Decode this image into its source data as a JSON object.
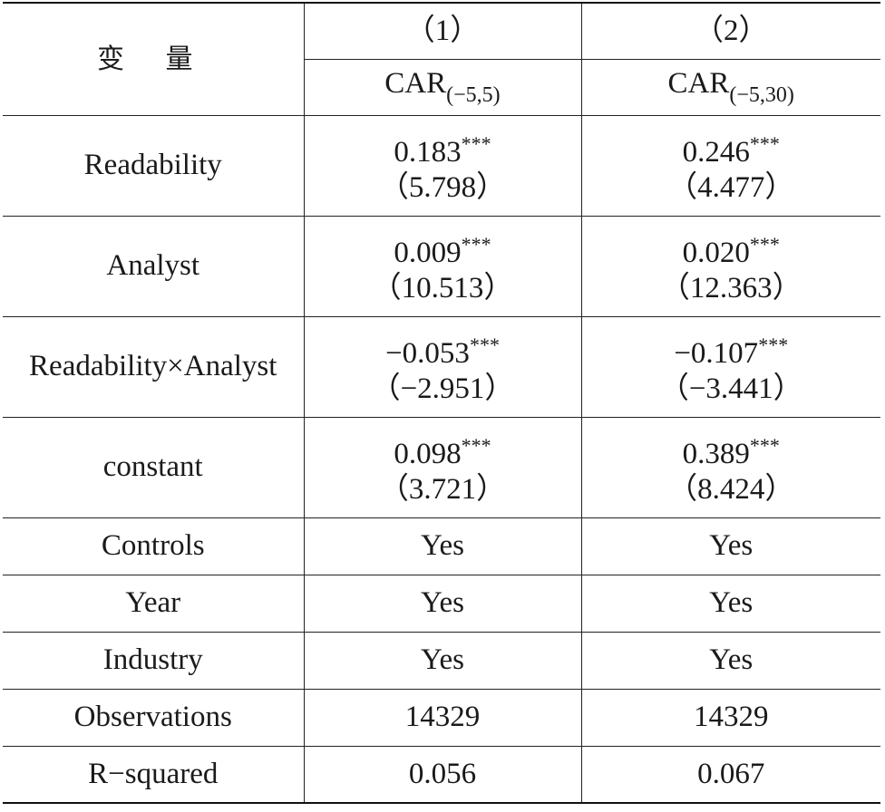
{
  "header": {
    "var_label": "变 量",
    "col1": "（1）",
    "col2": "（2）",
    "dep1": {
      "base": "CAR",
      "sub": "(−5,5)"
    },
    "dep2": {
      "base": "CAR",
      "sub": "(−5,30)"
    }
  },
  "rows": [
    {
      "label": "Readability",
      "c1": {
        "coef": "0.183",
        "stars": "***",
        "t": "（5.798）"
      },
      "c2": {
        "coef": "0.246",
        "stars": "***",
        "t": "（4.477）"
      }
    },
    {
      "label": "Analyst",
      "c1": {
        "coef": "0.009",
        "stars": "***",
        "t": "（10.513）"
      },
      "c2": {
        "coef": "0.020",
        "stars": "***",
        "t": "（12.363）"
      }
    },
    {
      "label": "Readability×Analyst",
      "c1": {
        "coef": "−0.053",
        "stars": "***",
        "t": "（−2.951）"
      },
      "c2": {
        "coef": "−0.107",
        "stars": "***",
        "t": "（−3.441）"
      }
    },
    {
      "label": "constant",
      "c1": {
        "coef": "0.098",
        "stars": "***",
        "t": "（3.721）"
      },
      "c2": {
        "coef": "0.389",
        "stars": "***",
        "t": "（8.424）"
      }
    }
  ],
  "footer": [
    {
      "label": "Controls",
      "c1": "Yes",
      "c2": "Yes"
    },
    {
      "label": "Year",
      "c1": "Yes",
      "c2": "Yes"
    },
    {
      "label": "Industry",
      "c1": "Yes",
      "c2": "Yes"
    },
    {
      "label": "Observations",
      "c1": "14329",
      "c2": "14329"
    },
    {
      "label": "R−squared",
      "c1": "0.056",
      "c2": "0.067"
    }
  ]
}
